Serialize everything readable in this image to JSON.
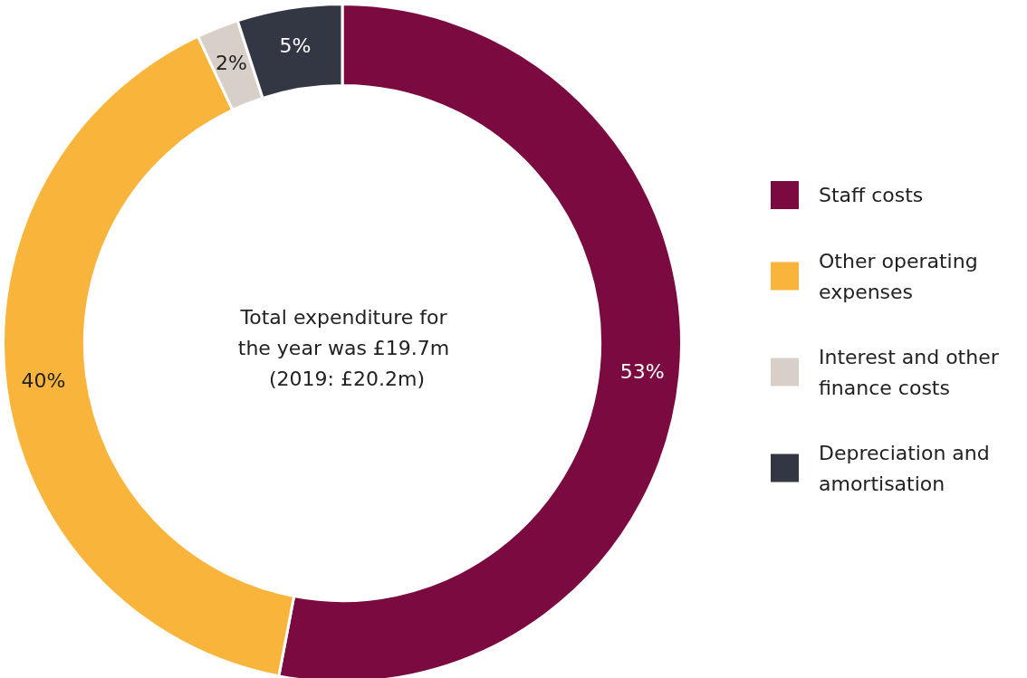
{
  "chart_data": {
    "type": "donut",
    "categories": [
      "Staff costs",
      "Other operating expenses",
      "Interest and other finance costs",
      "Depreciation and amortisation"
    ],
    "values": [
      53,
      40,
      2,
      5
    ],
    "value_labels": [
      "53%",
      "40%",
      "2%",
      "5%"
    ],
    "colors": [
      "#7a0a3f",
      "#f9b53b",
      "#d8d0c8",
      "#323743"
    ],
    "annotations": [
      "Total expenditure for the year was £19.7m (2019: £20.2m)"
    ],
    "legend": "right"
  }
}
